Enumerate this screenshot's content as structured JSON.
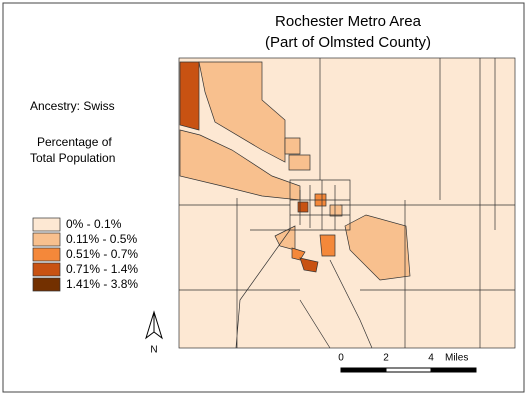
{
  "map": {
    "title": [
      "Rochester Metro Area",
      "(Part of Olmsted County)"
    ],
    "subject": "Ancestry: Swiss",
    "measure": [
      "Percentage of",
      "Total Population"
    ],
    "legend": [
      {
        "label": "0% - 0.1%",
        "color": "#fde8d3"
      },
      {
        "label": "0.11% - 0.5%",
        "color": "#f8c08e"
      },
      {
        "label": "0.51% - 0.7%",
        "color": "#f4883a"
      },
      {
        "label": "0.71% - 1.4%",
        "color": "#c85212"
      },
      {
        "label": "1.41% - 3.8%",
        "color": "#733000"
      }
    ],
    "north": "N",
    "scale": [
      "0",
      "2",
      "4",
      "Miles"
    ]
  }
}
